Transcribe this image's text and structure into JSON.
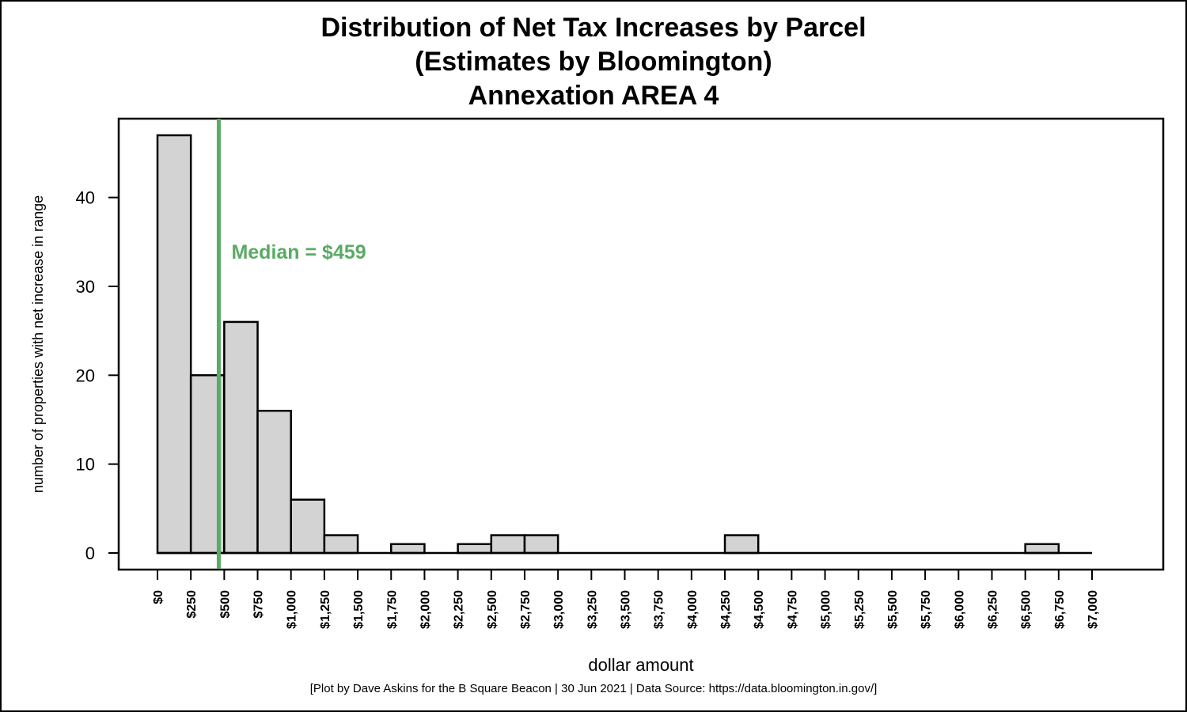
{
  "chart_data": {
    "type": "bar",
    "title_lines": [
      "Distribution of Net Tax Increases by Parcel",
      "(Estimates by Bloomington)",
      "Annexation AREA 4"
    ],
    "xlabel": "dollar amount",
    "ylabel": "number of properties with net increase in range",
    "bin_width": 250,
    "bins_start": [
      0,
      250,
      500,
      750,
      1000,
      1250,
      1500,
      1750,
      2000,
      2250,
      2500,
      2750,
      3000,
      3250,
      3500,
      3750,
      4000,
      4250,
      4500,
      4750,
      5000,
      5250,
      5500,
      5750,
      6000,
      6250,
      6500,
      6750
    ],
    "values": [
      47,
      20,
      26,
      16,
      6,
      2,
      0,
      1,
      0,
      1,
      2,
      2,
      0,
      0,
      0,
      0,
      0,
      2,
      0,
      0,
      0,
      0,
      0,
      0,
      0,
      0,
      1,
      0
    ],
    "xlim": [
      0,
      7000
    ],
    "ylim": [
      0,
      47
    ],
    "x_ticks": [
      "$0",
      "$250",
      "$500",
      "$750",
      "$1,000",
      "$1,250",
      "$1,500",
      "$1,750",
      "$2,000",
      "$2,250",
      "$2,500",
      "$2,750",
      "$3,000",
      "$3,250",
      "$3,500",
      "$3,750",
      "$4,000",
      "$4,250",
      "$4,500",
      "$4,750",
      "$5,000",
      "$5,250",
      "$5,500",
      "$5,750",
      "$6,000",
      "$6,250",
      "$6,500",
      "$6,750",
      "$7,000"
    ],
    "y_ticks": [
      0,
      10,
      20,
      30,
      40
    ],
    "median": {
      "value": 459,
      "label": "Median = $459",
      "color": "#5aaa64"
    },
    "bar_fill": "#d3d3d3",
    "bar_stroke": "#000000"
  },
  "footer": "[Plot by Dave Askins for the B Square Beacon | 30 Jun 2021 | Data Source: https://data.bloomington.in.gov/]"
}
